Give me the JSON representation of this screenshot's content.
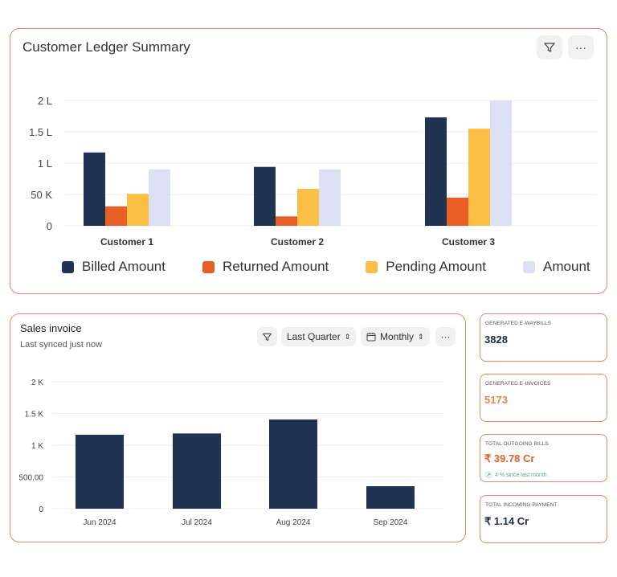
{
  "ledger": {
    "title": "Customer Ledger Summary",
    "filter_icon": "filter-icon",
    "more_icon": "more-icon",
    "more_label": "···"
  },
  "sales": {
    "title": "Sales invoice",
    "subtitle": "Last synced just now",
    "period": "Last Quarter",
    "granularity": "Monthly",
    "more_label": "···"
  },
  "kpis": [
    {
      "label": "GENERATED E-WAYBILLS",
      "value": "3828",
      "color": "#1f2d4a"
    },
    {
      "label": "GENERATED E-INVOICES",
      "value": "5173",
      "color": "#e8844a"
    },
    {
      "label": "TOTAL OUTGOING BILLS",
      "value": "₹ 39.78 Cr",
      "color": "#e0602a",
      "trend": "4 % since last month"
    },
    {
      "label": "TOTAL INCOMING PAYMENT",
      "value": "₹ 1.14 Cr",
      "color": "#1f2d4a"
    }
  ],
  "chart_data": [
    {
      "type": "bar",
      "categories": [
        "Customer 1",
        "Customer 2",
        "Customer 3"
      ],
      "yticks": [
        {
          "v": 0,
          "label": "0"
        },
        {
          "v": 50000,
          "label": "50 K"
        },
        {
          "v": 100000,
          "label": "1 L"
        },
        {
          "v": 150000,
          "label": "1.5 L"
        },
        {
          "v": 200000,
          "label": "2 L"
        }
      ],
      "ylim": [
        0,
        200000
      ],
      "grid": true,
      "legend": "bottom",
      "series": [
        {
          "name": "Billed Amount",
          "color": "#213352",
          "values": [
            117000,
            94000,
            173000
          ]
        },
        {
          "name": "Returned Amount",
          "color": "#e95e25",
          "values": [
            31000,
            15000,
            45000
          ]
        },
        {
          "name": "Pending Amount",
          "color": "#fbbf45",
          "values": [
            51000,
            59000,
            155000
          ]
        },
        {
          "name": "Amount",
          "color": "#dbe1f3",
          "values": [
            90000,
            90000,
            200000
          ]
        }
      ]
    },
    {
      "type": "bar",
      "categories": [
        "Jun 2024",
        "Jul 2024",
        "Aug 2024",
        "Sep 2024"
      ],
      "values": [
        1165,
        1185,
        1405,
        354
      ],
      "color": "#213352",
      "yticks": [
        {
          "v": 0,
          "label": "0"
        },
        {
          "v": 500,
          "label": "500.00"
        },
        {
          "v": 1000,
          "label": "1 K"
        },
        {
          "v": 1500,
          "label": "1.5 K"
        },
        {
          "v": 2000,
          "label": "2 K"
        }
      ],
      "ylim": [
        0,
        2000
      ],
      "grid": true
    }
  ]
}
